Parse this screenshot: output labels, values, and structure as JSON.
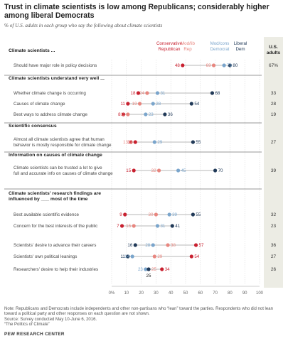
{
  "title": "Trust in climate scientists is low among Republicans; considerably higher among liberal Democrats",
  "subtitle": "% of U.S. adults in each group who say the following about climate scientists",
  "notes": [
    "Note: Republicans and Democrats include independents and other non-partisans who “lean” toward the parties. Respondents who did not lean toward a political party and other responses on each question are not shown.",
    "Source: Survey conducted May 10-June 6, 2016.",
    "“The Politics of Climate”"
  ],
  "brand": "PEW RESEARCH CENTER",
  "colors": {
    "cons_rep": "#c8202f",
    "mod_rep": "#e8867f",
    "mod_dem": "#7aa5cc",
    "lib_dem": "#213a58",
    "adults_bg": "#ecece4"
  },
  "chart_data": {
    "type": "scatter",
    "xlim": [
      0,
      100
    ],
    "xticks": [
      "0%",
      "10",
      "20",
      "30",
      "40",
      "50",
      "60",
      "70",
      "80",
      "90",
      "100"
    ],
    "legend": [
      {
        "key": "cons_rep",
        "label": "Conservative Republican"
      },
      {
        "key": "mod_rep",
        "label": "Mod/lib Rep"
      },
      {
        "key": "mod_dem",
        "label": "Mod/cons Democrat"
      },
      {
        "key": "lib_dem",
        "label": "Liberal Dem"
      }
    ],
    "adults_header": "U.S. adults",
    "sections": [
      {
        "header": "Climate scientists ...",
        "rows": [
          {
            "label": "Should have major role in policy decisions",
            "cons_rep": 48,
            "mod_rep": 69,
            "mod_dem": 76,
            "lib_dem": 80,
            "adults": "67%"
          }
        ]
      },
      {
        "header": "Climate scientists understand very well ...",
        "rows": [
          {
            "label": "Whether climate change is occurring",
            "cons_rep": 18,
            "mod_rep": 24,
            "mod_dem": 31,
            "lib_dem": 68,
            "adults": "33"
          },
          {
            "label": "Causes of climate change",
            "cons_rep": 11,
            "mod_rep": 19,
            "mod_dem": 28,
            "lib_dem": 54,
            "adults": "28"
          },
          {
            "label": "Best ways to address climate change",
            "cons_rep": 8,
            "mod_rep": 11,
            "mod_dem": 23,
            "lib_dem": 36,
            "adults": "19"
          }
        ]
      },
      {
        "header": "Scientific consensus",
        "rows": [
          {
            "label": "Almost all climate scientists agree that human behavior is mostly responsible for climate change",
            "cons_rep": 16,
            "mod_rep": 13,
            "mod_dem": 29,
            "lib_dem": 55,
            "adults": "27"
          }
        ]
      },
      {
        "header": "Information on causes of climate change",
        "rows": [
          {
            "label": "Climate scientists can be trusted a lot to give full and accurate info on causes of climate change",
            "cons_rep": 15,
            "mod_rep": 32,
            "mod_dem": 45,
            "lib_dem": 70,
            "adults": "39"
          }
        ]
      },
      {
        "header": "Climate scientists' research findings are influenced by ___ most of the time",
        "rows": [
          {
            "label": "Best available scientific evidence",
            "cons_rep": 9,
            "mod_rep": 30,
            "mod_dem": 39,
            "lib_dem": 55,
            "adults": "32"
          },
          {
            "label": "Concern for the best interests of the public",
            "cons_rep": 7,
            "mod_rep": 15,
            "mod_dem": 31,
            "lib_dem": 41,
            "adults": "23"
          },
          {
            "label": "Scientists' desire to advance their careers",
            "cons_rep": 57,
            "mod_rep": 38,
            "mod_dem": 28,
            "lib_dem": 16,
            "adults": "36"
          },
          {
            "label": "Scientists' own political leanings",
            "cons_rep": 54,
            "mod_rep": 29,
            "mod_dem": 14,
            "lib_dem": 11,
            "adults": "27"
          },
          {
            "label": "Researchers' desire to help their industries",
            "cons_rep": 34,
            "mod_rep": 25,
            "mod_dem": 23,
            "lib_dem": 25,
            "adults": "26"
          }
        ]
      }
    ]
  }
}
